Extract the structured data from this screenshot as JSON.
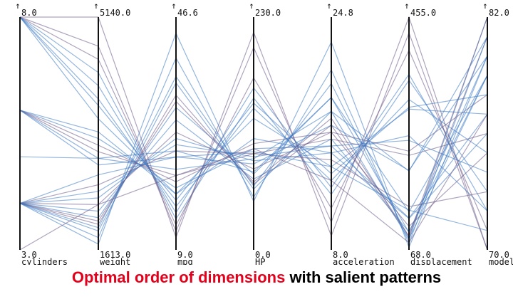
{
  "caption": {
    "highlight": "Optimal order of dimensions",
    "rest": " with salient patterns"
  },
  "colors": {
    "line_blue": "#3a78c2",
    "line_purple": "#6b5a86",
    "axis": "#111111",
    "caption_highlight": "#e3001b"
  },
  "axis_arrow": "↑",
  "chart_data": {
    "type": "parallel-coordinates",
    "axes": [
      {
        "name": "cylinders",
        "max_label": "8.0",
        "min_label": "3.0",
        "max": 8,
        "min": 3
      },
      {
        "name": "weight",
        "max_label": "5140.0",
        "min_label": "1613.0",
        "max": 5140,
        "min": 1613
      },
      {
        "name": "mpg",
        "max_label": "46.6",
        "min_label": "9.0",
        "max": 46.6,
        "min": 9
      },
      {
        "name": "HP",
        "max_label": "230.0",
        "min_label": "0.0",
        "max": 230,
        "min": 0
      },
      {
        "name": "acceleration",
        "max_label": "24.8",
        "min_label": "8.0",
        "max": 24.8,
        "min": 8
      },
      {
        "name": "displacement",
        "max_label": "455.0",
        "min_label": "68.0",
        "max": 455,
        "min": 68
      },
      {
        "name": "model",
        "max_label": "82.0",
        "min_label": "70.0",
        "max": 82,
        "min": 70
      }
    ],
    "series": [
      {
        "name": "",
        "values": [
          8,
          4500,
          13,
          170,
          11,
          400,
          71
        ]
      },
      {
        "name": "",
        "values": [
          8,
          4300,
          14,
          150,
          12,
          350,
          73
        ]
      },
      {
        "name": "",
        "values": [
          8,
          3900,
          16,
          140,
          13,
          318,
          75
        ]
      },
      {
        "name": "",
        "values": [
          8,
          4700,
          12,
          200,
          10,
          455,
          70
        ]
      },
      {
        "name": "",
        "values": [
          8,
          3600,
          18,
          130,
          14,
          302,
          77
        ]
      },
      {
        "name": "",
        "values": [
          8,
          4100,
          15,
          160,
          12.5,
          360,
          72
        ]
      },
      {
        "name": "",
        "values": [
          8,
          5140,
          11,
          215,
          9,
          429,
          70
        ]
      },
      {
        "name": "",
        "values": [
          8,
          3800,
          17,
          145,
          13.5,
          305,
          78
        ]
      },
      {
        "name": "",
        "values": [
          6,
          3300,
          19,
          100,
          15.5,
          250,
          74
        ]
      },
      {
        "name": "",
        "values": [
          6,
          3100,
          21,
          95,
          16,
          225,
          76
        ]
      },
      {
        "name": "",
        "values": [
          6,
          2900,
          24,
          85,
          17,
          200,
          80
        ]
      },
      {
        "name": "",
        "values": [
          6,
          3400,
          18,
          110,
          15,
          258,
          72
        ]
      },
      {
        "name": "",
        "values": [
          6,
          3200,
          20,
          105,
          16.5,
          232,
          78
        ]
      },
      {
        "name": "",
        "values": [
          6,
          3000,
          22,
          90,
          18,
          199,
          81
        ]
      },
      {
        "name": "",
        "values": [
          4,
          2200,
          30,
          70,
          16,
          98,
          79
        ]
      },
      {
        "name": "",
        "values": [
          4,
          2000,
          34,
          65,
          17,
          90,
          81
        ]
      },
      {
        "name": "",
        "values": [
          4,
          2400,
          27,
          88,
          15,
          120,
          76
        ]
      },
      {
        "name": "",
        "values": [
          4,
          1900,
          36,
          60,
          18,
          85,
          82
        ]
      },
      {
        "name": "",
        "values": [
          4,
          2600,
          25,
          95,
          14.5,
          140,
          73
        ]
      },
      {
        "name": "",
        "values": [
          4,
          2100,
          32,
          75,
          19,
          97,
          80
        ]
      },
      {
        "name": "",
        "values": [
          4,
          1800,
          40,
          52,
          21,
          79,
          81
        ]
      },
      {
        "name": "",
        "values": [
          4,
          2300,
          28,
          80,
          16.5,
          107,
          75
        ]
      },
      {
        "name": "",
        "values": [
          4,
          2500,
          26,
          92,
          15.5,
          121,
          77
        ]
      },
      {
        "name": "",
        "values": [
          4,
          1700,
          44,
          48,
          23,
          72,
          80
        ]
      },
      {
        "name": "",
        "values": [
          4,
          2050,
          33,
          67,
          17.5,
          91,
          82
        ]
      },
      {
        "name": "",
        "values": [
          4,
          2750,
          24,
          97,
          14,
          134,
          71
        ]
      },
      {
        "name": "",
        "values": [
          4,
          1950,
          37,
          63,
          20,
          86,
          79
        ]
      },
      {
        "name": "",
        "values": [
          3,
          2300,
          21,
          100,
          13,
          80,
          77
        ]
      },
      {
        "name": "",
        "values": [
          5,
          3000,
          25,
          77,
          19,
          131,
          79
        ]
      }
    ]
  }
}
